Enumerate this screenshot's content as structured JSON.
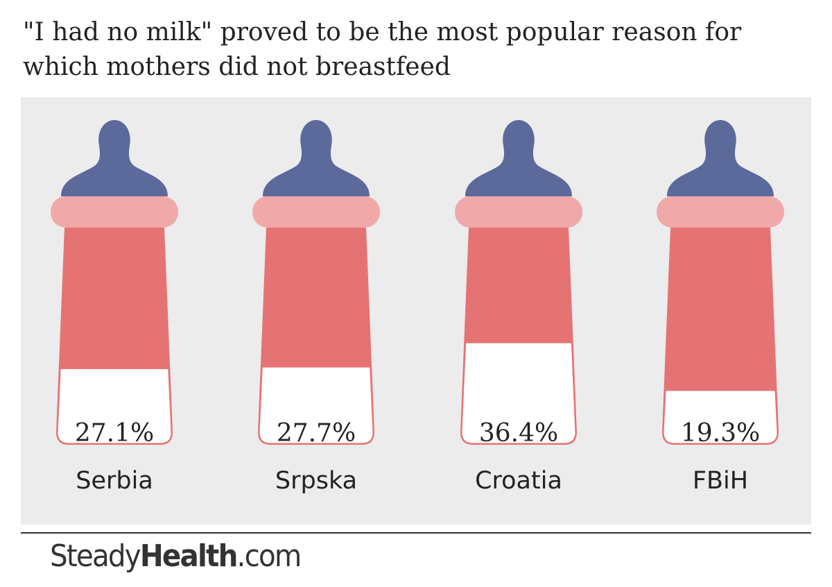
{
  "title": "\"I had no milk\" proved to be the most popular reason for which mothers did not breastfeed",
  "brand": {
    "part1": "Steady",
    "part2": "Health",
    "part3": ".com"
  },
  "colors": {
    "panel": "#ececec",
    "nipple": "#5b6a9a",
    "collar": "#f0a8a8",
    "body": "#e57373",
    "fill": "#ffffff",
    "outline": "#e57373",
    "text": "#222222"
  },
  "chart_data": {
    "type": "bar",
    "categories": [
      "Serbia",
      "Srpska",
      "Croatia",
      "FBiH"
    ],
    "values": [
      27.1,
      27.7,
      36.4,
      19.3
    ],
    "value_labels": [
      "27.1%",
      "27.7%",
      "36.4%",
      "19.3%"
    ],
    "title": "\"I had no milk\" proved to be the most popular reason for which mothers did not breastfeed",
    "unit": "%",
    "ylim": [
      0,
      100
    ]
  }
}
